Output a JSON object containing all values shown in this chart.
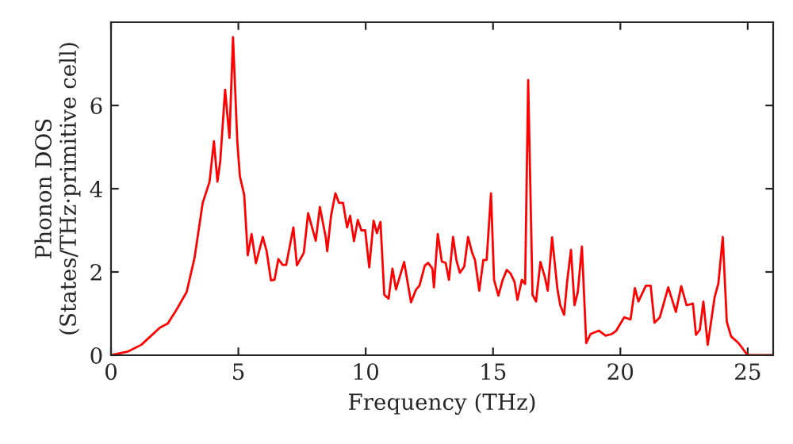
{
  "chart_data": {
    "type": "line",
    "xlabel": "Frequency (THz)",
    "ylabel": "Phonon DOS\n(States/THz·primitive cell)",
    "xlim": [
      0,
      26
    ],
    "ylim": [
      0,
      8
    ],
    "xticks": [
      0,
      5,
      10,
      15,
      20,
      25
    ],
    "yticks": [
      0,
      2,
      4,
      6
    ],
    "grid": false,
    "legend": false,
    "series": [
      {
        "color": "#ff0000",
        "x": [
          0,
          0.67,
          1.19,
          1.92,
          2.23,
          2.55,
          2.97,
          3.28,
          3.6,
          3.87,
          4.04,
          4.18,
          4.29,
          4.48,
          4.65,
          4.79,
          4.96,
          5.06,
          5.23,
          5.37,
          5.52,
          5.69,
          5.96,
          6.11,
          6.28,
          6.42,
          6.57,
          6.74,
          6.88,
          7.16,
          7.3,
          7.57,
          7.74,
          8.04,
          8.2,
          8.43,
          8.49,
          8.64,
          8.81,
          8.95,
          9.11,
          9.27,
          9.39,
          9.54,
          9.69,
          9.83,
          9.98,
          10.14,
          10.31,
          10.44,
          10.58,
          10.73,
          10.9,
          11.05,
          11.19,
          11.51,
          11.78,
          11.98,
          12.11,
          12.32,
          12.45,
          12.62,
          12.68,
          12.83,
          12.99,
          13.14,
          13.27,
          13.43,
          13.56,
          13.7,
          13.87,
          14.02,
          14.18,
          14.29,
          14.46,
          14.62,
          14.75,
          14.92,
          15.04,
          15.21,
          15.38,
          15.54,
          15.69,
          15.84,
          15.96,
          16.13,
          16.26,
          16.38,
          16.55,
          16.69,
          16.86,
          17.03,
          17.15,
          17.32,
          17.53,
          17.64,
          17.79,
          17.91,
          18.06,
          18.2,
          18.33,
          18.49,
          18.66,
          18.83,
          19.16,
          19.42,
          19.67,
          19.84,
          20.15,
          20.4,
          20.57,
          20.71,
          21.0,
          21.19,
          21.34,
          21.55,
          21.88,
          22.18,
          22.39,
          22.6,
          22.85,
          22.97,
          23.12,
          23.26,
          23.43,
          23.7,
          23.85,
          24.02,
          24.18,
          24.35,
          24.64,
          24.96,
          25.07,
          26.0
        ],
        "values": [
          0,
          0.09,
          0.25,
          0.66,
          0.76,
          1.07,
          1.52,
          2.34,
          3.66,
          4.17,
          5.14,
          4.17,
          4.67,
          6.38,
          5.22,
          7.64,
          5.12,
          4.3,
          3.85,
          2.4,
          2.91,
          2.21,
          2.84,
          2.5,
          1.8,
          1.81,
          2.31,
          2.17,
          2.17,
          3.07,
          2.16,
          2.46,
          3.41,
          2.75,
          3.56,
          2.84,
          2.5,
          3.35,
          3.89,
          3.66,
          3.66,
          3.07,
          3.35,
          2.74,
          3.25,
          3.0,
          3.0,
          2.11,
          3.23,
          2.93,
          3.2,
          1.45,
          1.36,
          2.08,
          1.58,
          2.24,
          1.27,
          1.58,
          1.67,
          2.15,
          2.22,
          2.08,
          1.63,
          2.91,
          2.25,
          2.22,
          1.81,
          2.84,
          2.29,
          1.98,
          2.13,
          2.84,
          2.46,
          2.29,
          1.55,
          2.29,
          2.29,
          3.89,
          1.81,
          1.43,
          1.81,
          2.05,
          1.96,
          1.77,
          1.33,
          1.81,
          1.71,
          6.61,
          1.45,
          1.29,
          2.24,
          1.89,
          1.55,
          2.83,
          1.58,
          1.2,
          0.97,
          1.77,
          2.53,
          1.2,
          1.52,
          2.61,
          0.29,
          0.51,
          0.59,
          0.47,
          0.51,
          0.59,
          0.91,
          0.86,
          1.61,
          1.29,
          1.67,
          1.67,
          0.78,
          0.91,
          1.63,
          1.04,
          1.66,
          1.2,
          1.24,
          0.49,
          0.61,
          1.29,
          0.25,
          1.39,
          1.73,
          2.84,
          0.8,
          0.45,
          0.29,
          0.03,
          0,
          0
        ]
      }
    ]
  }
}
